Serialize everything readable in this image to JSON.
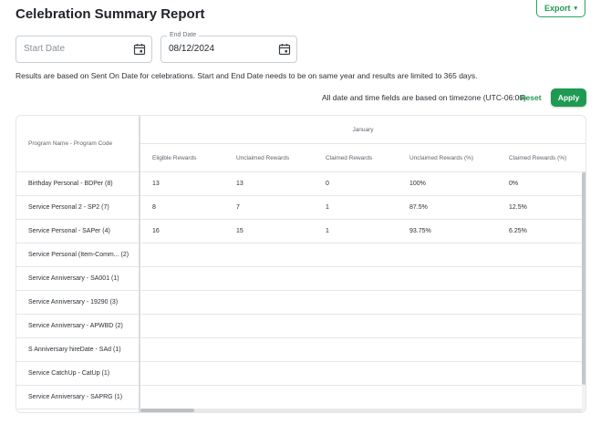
{
  "page": {
    "title": "Celebration Summary Report"
  },
  "toolbar": {
    "export_label": "Export"
  },
  "filters": {
    "start_date": {
      "placeholder": "Start Date",
      "value": ""
    },
    "end_date": {
      "label": "End Date",
      "value": "08/12/2024"
    }
  },
  "info_text": "Results are based on Sent On Date for celebrations. Start and End Date needs to be on same year and results are limited to 365 days.",
  "timezone_text": "All date and time fields are based on timezone (UTC-06:00)",
  "actions": {
    "reset_label": "Reset",
    "apply_label": "Apply"
  },
  "table": {
    "fixed_header": "Program Name - Program Code",
    "month": "January",
    "columns": [
      "Eligible Rewards",
      "Unclaimed Rewards",
      "Claimed Rewards",
      "Unclaimed Rewards (%)",
      "Claimed Rewards (%)"
    ],
    "rows": [
      {
        "name": "Birthday Personal - BDPer (8)",
        "values": [
          "13",
          "13",
          "0",
          "100%",
          "0%"
        ]
      },
      {
        "name": "Service Personal 2 - SP2 (7)",
        "values": [
          "8",
          "7",
          "1",
          "87.5%",
          "12.5%"
        ]
      },
      {
        "name": "Service Personal - SAPer (4)",
        "values": [
          "16",
          "15",
          "1",
          "93.75%",
          "6.25%"
        ]
      },
      {
        "name": "Service Personal (Item-Comm... (2)",
        "values": [
          "",
          "",
          "",
          "",
          ""
        ]
      },
      {
        "name": "Service Anniversary - SA001 (1)",
        "values": [
          "",
          "",
          "",
          "",
          ""
        ]
      },
      {
        "name": "Service Anniversary - 19290 (3)",
        "values": [
          "",
          "",
          "",
          "",
          ""
        ]
      },
      {
        "name": "Service Anniversary - APWBD (2)",
        "values": [
          "",
          "",
          "",
          "",
          ""
        ]
      },
      {
        "name": "S Anniversary hireDate - SAd (1)",
        "values": [
          "",
          "",
          "",
          "",
          ""
        ]
      },
      {
        "name": "Service CatchUp - CatUp (1)",
        "values": [
          "",
          "",
          "",
          "",
          ""
        ]
      },
      {
        "name": "Service Anniversary - SAPRG (1)",
        "values": [
          "",
          "",
          "",
          "",
          ""
        ]
      }
    ]
  },
  "icons": {
    "calendar": "calendar-icon",
    "chevron": "chevron-down-icon"
  },
  "colors": {
    "accent": "#1e9a52"
  }
}
